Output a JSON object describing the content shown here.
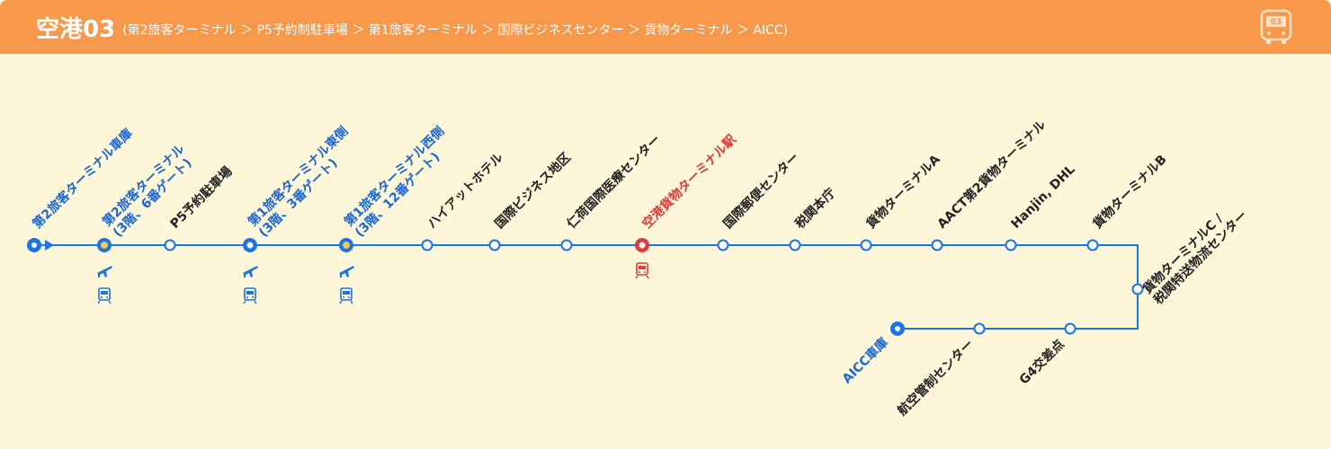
{
  "header": {
    "route_name": "空港03",
    "route_description": "(第2旅客ターミナル ＞ P5予約制駐車場 ＞ 第1旅客ターミナル ＞ 国際ビジネスセンター ＞ 貨物ターミナル ＞ AICC)",
    "route_number_badge": "03",
    "icon": "bus-icon",
    "accent_color": "#f7984a"
  },
  "colors": {
    "line": "#1a73e8",
    "highlight": "#e23a3a",
    "transfer_fill": "#f3c64a",
    "background": "#fdf6d8"
  },
  "stops": [
    {
      "name": "第2旅客ターミナル車庫",
      "type": "terminus-start",
      "label_color": "blue"
    },
    {
      "name": "第2旅客ターミナル\n(3階、6番ゲート)",
      "type": "transfer",
      "label_color": "blue",
      "icons": [
        "airplane-icon",
        "train-icon"
      ]
    },
    {
      "name": "P5予約駐車場",
      "type": "normal",
      "label_color": "dark"
    },
    {
      "name": "第1旅客ターミナル東側\n(3階、3番ゲート)",
      "type": "major",
      "label_color": "blue",
      "icons": [
        "airplane-icon",
        "train-icon"
      ]
    },
    {
      "name": "第1旅客ターミナル西側\n(3階、12番ゲート)",
      "type": "transfer",
      "label_color": "blue",
      "icons": [
        "airplane-icon",
        "train-icon"
      ]
    },
    {
      "name": "ハイアットホテル",
      "type": "normal",
      "label_color": "dark"
    },
    {
      "name": "国際ビジネス地区",
      "type": "normal",
      "label_color": "dark"
    },
    {
      "name": "仁荷国際医療センター",
      "type": "normal",
      "label_color": "dark"
    },
    {
      "name": "空港貨物ターミナル駅",
      "type": "highlight",
      "label_color": "red",
      "icons": [
        "train-icon"
      ]
    },
    {
      "name": "国際郵便センター",
      "type": "normal",
      "label_color": "dark"
    },
    {
      "name": "税関本庁",
      "type": "normal",
      "label_color": "dark"
    },
    {
      "name": "貨物ターミナルA",
      "type": "normal",
      "label_color": "dark"
    },
    {
      "name": "AACT第2貨物ターミナル",
      "type": "normal",
      "label_color": "dark"
    },
    {
      "name": "Hanjin, DHL",
      "type": "normal",
      "label_color": "dark"
    },
    {
      "name": "貨物ターミナルB",
      "type": "normal",
      "label_color": "dark"
    },
    {
      "name": "貨物ターミナルC /\n税関特送物流センター",
      "type": "normal",
      "label_color": "dark"
    },
    {
      "name": "G4交差点",
      "type": "normal",
      "label_color": "dark"
    },
    {
      "name": "航空管制センター",
      "type": "normal",
      "label_color": "dark"
    },
    {
      "name": "AICC車庫",
      "type": "terminus-end",
      "label_color": "blue"
    }
  ]
}
